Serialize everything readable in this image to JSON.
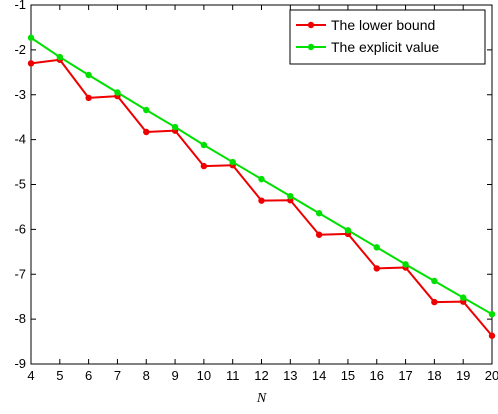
{
  "chart_data": {
    "type": "line",
    "title": "",
    "xlabel": "N",
    "ylabel": "",
    "xlim": [
      4,
      20
    ],
    "ylim": [
      -9,
      -1
    ],
    "x_ticks": [
      4,
      5,
      6,
      7,
      8,
      9,
      10,
      11,
      12,
      13,
      14,
      15,
      16,
      17,
      18,
      19,
      20
    ],
    "y_ticks": [
      -1,
      -2,
      -3,
      -4,
      -5,
      -6,
      -7,
      -8,
      -9
    ],
    "grid": false,
    "legend_position": "top-right",
    "x": [
      4,
      5,
      6,
      7,
      8,
      9,
      10,
      11,
      12,
      13,
      14,
      15,
      16,
      17,
      18,
      19,
      20
    ],
    "series": [
      {
        "name": "The lower bound",
        "color": "#ee0000",
        "values": [
          -2.3,
          -2.22,
          -3.07,
          -3.03,
          -3.83,
          -3.8,
          -4.59,
          -4.57,
          -5.36,
          -5.35,
          -6.12,
          -6.1,
          -6.87,
          -6.85,
          -7.62,
          -7.61,
          -8.37
        ]
      },
      {
        "name": "The explicit value",
        "color": "#00e000",
        "values": [
          -1.73,
          -2.16,
          -2.56,
          -2.95,
          -3.34,
          -3.72,
          -4.12,
          -4.5,
          -4.88,
          -5.26,
          -5.64,
          -6.02,
          -6.4,
          -6.78,
          -7.15,
          -7.52,
          -7.89
        ]
      }
    ]
  }
}
